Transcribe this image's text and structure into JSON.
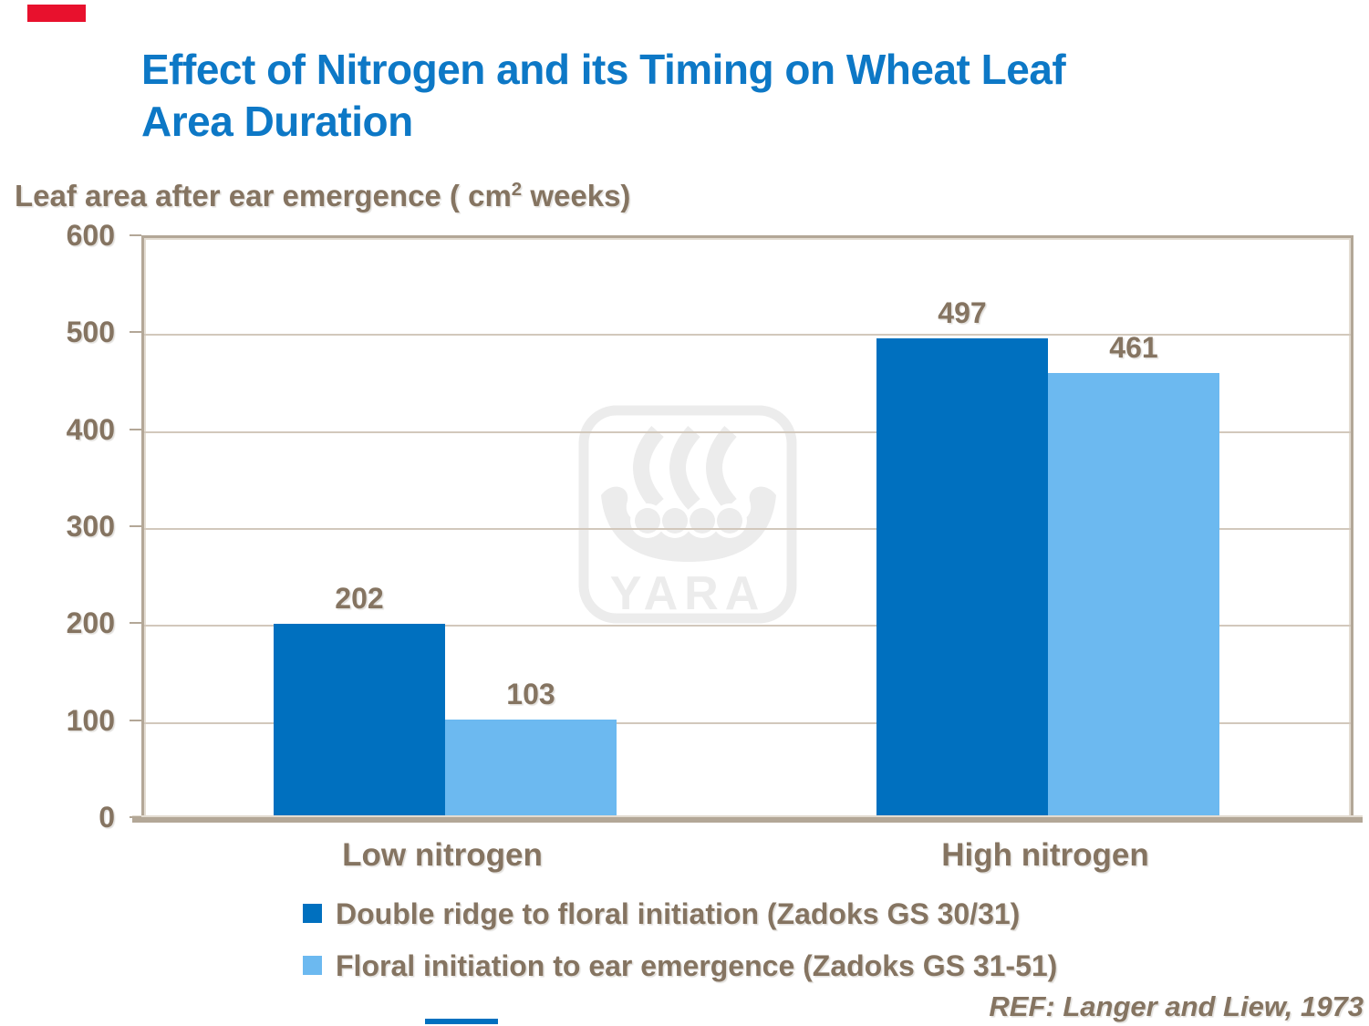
{
  "slide": {
    "accent_red_color": "#e8112d",
    "accent_blue_color": "#0070bf"
  },
  "header": {
    "title": "Effect of Nitrogen and its Timing on Wheat Leaf\nArea Duration",
    "title_color": "#0d78c6"
  },
  "footer": {
    "reference": "REF: Langer and Liew, 1973"
  },
  "watermark": {
    "wordmark": "YARA",
    "color": "#ececec"
  },
  "chart_data": {
    "type": "bar",
    "title": "Effect of Nitrogen and its Timing on Wheat Leaf Area Duration",
    "ylabel": "Leaf area after ear emergence ( cm2 weeks)",
    "ylabel_parts": {
      "pre": "Leaf area after ear emergence ( cm",
      "sup": "2",
      "post": " weeks)"
    },
    "xlabel": "",
    "categories": [
      "Low nitrogen",
      "High nitrogen"
    ],
    "series": [
      {
        "name": "Double ridge to floral initiation (Zadoks GS 30/31)",
        "values": [
          202,
          497
        ],
        "color": "#0070bf"
      },
      {
        "name": "Floral initiation to ear emergence (Zadoks GS 31-51)",
        "values": [
          103,
          461
        ],
        "color": "#6cb9f0"
      }
    ],
    "ylim": [
      0,
      600
    ],
    "yticks": [
      0,
      100,
      200,
      300,
      400,
      500,
      600
    ],
    "grid": true,
    "legend_position": "bottom",
    "colors": {
      "text_brown": "#857461",
      "gridline": "#d2c8bc",
      "plot_border": "#b3a797"
    }
  }
}
